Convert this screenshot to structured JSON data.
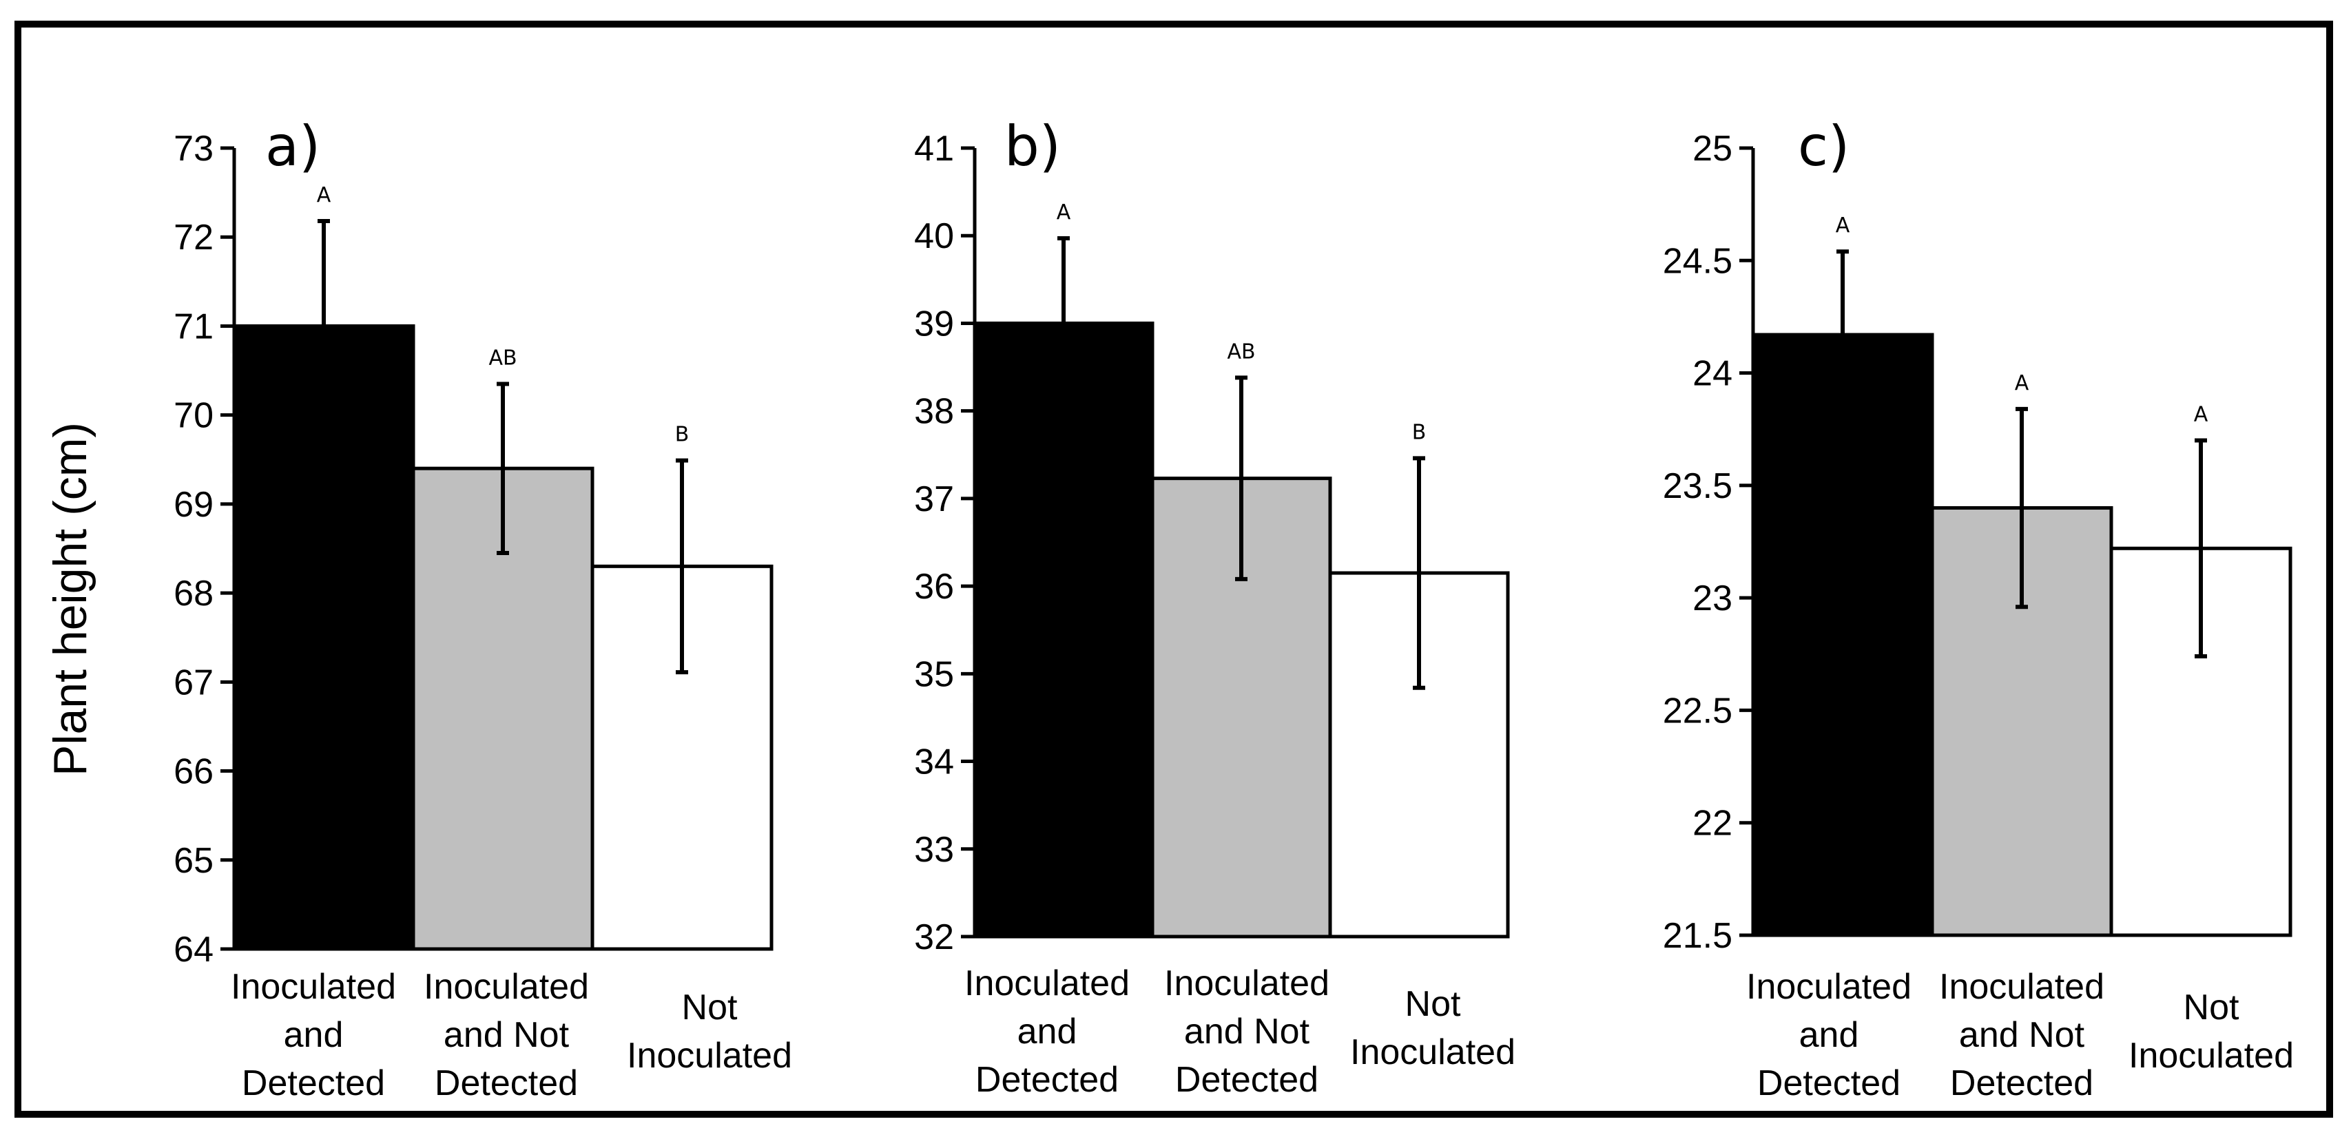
{
  "figure": {
    "ylabel": "Plant height (cm)",
    "colors": {
      "frame": "#000000",
      "axis": "#000000"
    }
  },
  "chart_data": [
    {
      "type": "bar",
      "panel_label": "a)",
      "ylabel": "Plant height (cm)",
      "xlabel": "",
      "ylim": [
        64,
        73
      ],
      "yticks": [
        64,
        65,
        66,
        67,
        68,
        69,
        70,
        71,
        72,
        73
      ],
      "ytick_labels": [
        "64",
        "65",
        "66",
        "67",
        "68",
        "69",
        "70",
        "71",
        "72",
        "73"
      ],
      "categories": [
        [
          "Inoculated",
          "and",
          "Detected"
        ],
        [
          "Inoculated",
          "and Not",
          "Detected"
        ],
        [
          "Not",
          "Inoculated"
        ]
      ],
      "values": [
        71.0,
        69.4,
        68.3
      ],
      "errors": [
        1.18,
        0.95,
        1.19
      ],
      "significance": [
        "A",
        "AB",
        "B"
      ],
      "bar_colors": [
        "#000000",
        "#bfbfbf",
        "#ffffff"
      ],
      "grid": false
    },
    {
      "type": "bar",
      "panel_label": "b)",
      "ylabel": "",
      "xlabel": "",
      "ylim": [
        32,
        41
      ],
      "yticks": [
        32,
        33,
        34,
        35,
        36,
        37,
        38,
        39,
        40,
        41
      ],
      "ytick_labels": [
        "32",
        "33",
        "34",
        "35",
        "36",
        "37",
        "38",
        "39",
        "40",
        "41"
      ],
      "categories": [
        [
          "Inoculated",
          "and",
          "Detected"
        ],
        [
          "Inoculated",
          "and Not",
          "Detected"
        ],
        [
          "Not",
          "Inoculated"
        ]
      ],
      "values": [
        39.0,
        37.23,
        36.15
      ],
      "errors": [
        0.97,
        1.15,
        1.31
      ],
      "significance": [
        "A",
        "AB",
        "B"
      ],
      "bar_colors": [
        "#000000",
        "#bfbfbf",
        "#ffffff"
      ],
      "grid": false
    },
    {
      "type": "bar",
      "panel_label": "c)",
      "ylabel": "",
      "xlabel": "",
      "ylim": [
        21.5,
        25
      ],
      "yticks": [
        21.5,
        22,
        22.5,
        23,
        23.5,
        24,
        24.5,
        25
      ],
      "ytick_labels": [
        "21.5",
        "22",
        "22.5",
        "23",
        "23.5",
        "24",
        "24.5",
        "25"
      ],
      "categories": [
        [
          "Inoculated",
          "and",
          "Detected"
        ],
        [
          "Inoculated",
          "and Not",
          "Detected"
        ],
        [
          "Not",
          "Inoculated"
        ]
      ],
      "values": [
        24.17,
        23.4,
        23.22
      ],
      "errors": [
        0.37,
        0.44,
        0.48
      ],
      "significance": [
        "A",
        "A",
        "A"
      ],
      "bar_colors": [
        "#000000",
        "#bfbfbf",
        "#ffffff"
      ],
      "grid": false
    }
  ]
}
